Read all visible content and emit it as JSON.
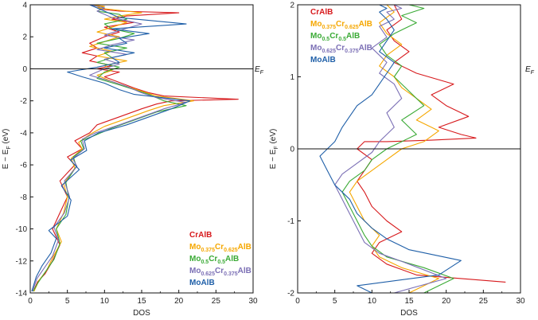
{
  "chart_data": [
    {
      "type": "line",
      "panel": "left",
      "xlabel": "DOS",
      "ylabel": "E − E_F (eV)",
      "xlim": [
        0,
        30
      ],
      "ylim": [
        -14,
        4
      ],
      "xticks": [
        "0",
        "5",
        "10",
        "15",
        "20",
        "25",
        "30"
      ],
      "yticks": [
        "4",
        "2",
        "0",
        "-2",
        "-4",
        "-6",
        "-8",
        "-10",
        "-12",
        "-14"
      ],
      "fermi_label": "E_F",
      "legend_position": "bottom-right",
      "series": [
        {
          "name": "CrAlB",
          "color": "#d7191c",
          "x": [
            0.5,
            1,
            2,
            3,
            4,
            3,
            4,
            5,
            4,
            6,
            5,
            7,
            6,
            8,
            9,
            12,
            15,
            17,
            19,
            28,
            18,
            16,
            14,
            10,
            12,
            9,
            11,
            8,
            9,
            7,
            9,
            8,
            10,
            12,
            10,
            14,
            11,
            13,
            20,
            12,
            10,
            9,
            10,
            8
          ],
          "y": [
            -13.8,
            -13.3,
            -12.8,
            -12,
            -11,
            -10,
            -9,
            -8,
            -7,
            -6,
            -5.5,
            -5,
            -4.5,
            -4,
            -3.5,
            -3,
            -2.5,
            -2.2,
            -2,
            -1.9,
            -1.7,
            -1.5,
            -1.2,
            -0.5,
            -0.2,
            0,
            0.2,
            0.5,
            0.8,
            1,
            1.3,
            1.6,
            2,
            2.3,
            2.6,
            2.9,
            3.1,
            3.3,
            3.5,
            3.6,
            3.7,
            3.8,
            3.9,
            4
          ]
        },
        {
          "name": "Mo0.375Cr0.625AlB",
          "color": "#f5a700",
          "x": [
            0.5,
            1.2,
            2.2,
            3,
            4.2,
            3.5,
            4.5,
            5,
            4.5,
            6,
            5.5,
            7,
            6.5,
            8,
            10,
            13,
            16,
            18,
            22,
            17,
            15,
            13,
            11,
            9,
            11,
            10,
            13,
            9,
            11,
            8,
            10,
            12,
            9,
            11,
            13,
            10,
            12,
            15,
            11,
            9,
            10,
            8
          ],
          "y": [
            -13.9,
            -13.2,
            -12.6,
            -11.8,
            -10.8,
            -10,
            -9,
            -8,
            -7.2,
            -6.2,
            -5.6,
            -5,
            -4.6,
            -4.1,
            -3.6,
            -3.1,
            -2.6,
            -2.3,
            -2,
            -1.7,
            -1.4,
            -1.1,
            -0.8,
            -0.4,
            -0.1,
            0.2,
            0.5,
            0.8,
            1.1,
            1.4,
            1.7,
            2,
            2.3,
            2.6,
            2.9,
            3.1,
            3.3,
            3.5,
            3.7,
            3.8,
            3.9,
            4
          ]
        },
        {
          "name": "Mo0.5Cr0.5AlB",
          "color": "#3aaa35",
          "x": [
            0.4,
            1,
            2,
            3.2,
            4,
            3.5,
            4.8,
            5.2,
            4.8,
            6.2,
            5.8,
            7.2,
            6.8,
            8.5,
            11,
            14,
            17,
            21,
            18,
            16,
            14,
            12,
            9,
            10,
            12,
            9,
            11,
            10,
            13,
            9,
            12,
            14,
            11,
            10,
            13,
            12,
            9,
            10,
            8
          ],
          "y": [
            -13.9,
            -13.4,
            -12.7,
            -11.9,
            -10.9,
            -10,
            -9.1,
            -8.1,
            -7.1,
            -6.1,
            -5.5,
            -5,
            -4.5,
            -4.2,
            -3.7,
            -3.2,
            -2.7,
            -2.3,
            -2,
            -1.6,
            -1.3,
            -1,
            -0.6,
            -0.2,
            0.1,
            0.4,
            0.7,
            1,
            1.3,
            1.6,
            1.9,
            2.2,
            2.5,
            2.8,
            3.1,
            3.4,
            3.6,
            3.8,
            4
          ]
        },
        {
          "name": "Mo0.625Cr0.375AlB",
          "color": "#7b6fb5",
          "x": [
            0.3,
            0.9,
            1.8,
            3,
            3.8,
            3.2,
            4.6,
            5.3,
            4.6,
            6.3,
            5.7,
            7.3,
            7,
            8.8,
            12,
            15,
            18,
            21,
            17,
            15,
            13,
            11,
            8,
            10,
            12,
            10,
            13,
            9,
            11,
            14,
            10,
            12,
            15,
            11,
            9,
            10,
            8
          ],
          "y": [
            -13.9,
            -13.1,
            -12.5,
            -11.7,
            -10.7,
            -9.9,
            -9,
            -8,
            -7,
            -6.1,
            -5.6,
            -5,
            -4.4,
            -4,
            -3.5,
            -3,
            -2.5,
            -2.1,
            -1.8,
            -1.5,
            -1.1,
            -0.8,
            -0.4,
            0,
            0.3,
            0.6,
            0.9,
            1.2,
            1.5,
            1.8,
            2.1,
            2.4,
            2.8,
            3.2,
            3.6,
            3.8,
            4
          ]
        },
        {
          "name": "MoAlB",
          "color": "#1f5fa8",
          "x": [
            0.2,
            0.8,
            1.6,
            2.8,
            3.5,
            2.5,
            5,
            5.5,
            4.2,
            6.6,
            5.4,
            7.6,
            7.3,
            9.2,
            13,
            16,
            19,
            21.5,
            14,
            12,
            10,
            7,
            5,
            9,
            12,
            11,
            14,
            10,
            13,
            12,
            16,
            11,
            21,
            12,
            10,
            9,
            8
          ],
          "y": [
            -13.9,
            -13,
            -12.3,
            -11.5,
            -10.6,
            -10.1,
            -9.2,
            -8.2,
            -7.3,
            -6.3,
            -5.7,
            -5.1,
            -4.5,
            -4,
            -3.5,
            -3,
            -2.5,
            -2,
            -1.6,
            -1.3,
            -0.9,
            -0.5,
            -0.2,
            0.1,
            0.4,
            0.7,
            1,
            1.3,
            1.6,
            1.9,
            2.2,
            2.5,
            2.8,
            3.2,
            3.6,
            3.8,
            4
          ]
        }
      ]
    },
    {
      "type": "line",
      "panel": "right",
      "xlabel": "DOS",
      "ylabel": "E − E_F (eV)",
      "xlim": [
        0,
        30
      ],
      "ylim": [
        -2,
        2
      ],
      "xticks": [
        "0",
        "5",
        "10",
        "15",
        "20",
        "25",
        "30"
      ],
      "yticks": [
        "2",
        "1",
        "0",
        "-1",
        "-2"
      ],
      "fermi_label": "E_F",
      "legend_position": "top-left",
      "series": [
        {
          "name": "CrAlB",
          "color": "#d7191c",
          "x": [
            28,
            16,
            12,
            10,
            11,
            14,
            12,
            10,
            9,
            8,
            9,
            10,
            8,
            9,
            12,
            18,
            24,
            22,
            19,
            23,
            20,
            18,
            21,
            16,
            13,
            15,
            13,
            12,
            14,
            13
          ],
          "y": [
            -1.85,
            -1.75,
            -1.6,
            -1.45,
            -1.3,
            -1.15,
            -1.0,
            -0.8,
            -0.6,
            -0.45,
            -0.3,
            -0.15,
            0,
            0.1,
            0.1,
            0.12,
            0.15,
            0.2,
            0.3,
            0.45,
            0.6,
            0.75,
            0.9,
            1.05,
            1.2,
            1.35,
            1.5,
            1.65,
            1.8,
            2
          ]
        },
        {
          "name": "Mo0.375Cr0.625AlB",
          "color": "#f5a700",
          "x": [
            15,
            19,
            14,
            11,
            10,
            11,
            9,
            8,
            7,
            8,
            10,
            12,
            14,
            17,
            19,
            16,
            18,
            16,
            14,
            13,
            11,
            12,
            14,
            12,
            11,
            13,
            12
          ],
          "y": [
            -2,
            -1.8,
            -1.65,
            -1.5,
            -1.35,
            -1.2,
            -1.0,
            -0.8,
            -0.6,
            -0.45,
            -0.3,
            -0.15,
            0,
            0.1,
            0.25,
            0.4,
            0.55,
            0.7,
            0.85,
            1.0,
            1.15,
            1.3,
            1.45,
            1.6,
            1.75,
            1.9,
            2
          ]
        },
        {
          "name": "Mo0.5Cr0.5AlB",
          "color": "#3aaa35",
          "x": [
            17,
            21,
            17,
            12,
            10,
            9,
            8,
            7,
            6,
            7,
            9,
            10,
            12,
            16,
            14,
            17,
            15,
            13,
            14,
            12,
            11,
            13,
            16,
            14,
            17,
            15
          ],
          "y": [
            -2,
            -1.8,
            -1.65,
            -1.5,
            -1.35,
            -1.2,
            -1.0,
            -0.8,
            -0.6,
            -0.45,
            -0.3,
            -0.15,
            0,
            0.2,
            0.4,
            0.6,
            0.8,
            1.0,
            1.15,
            1.3,
            1.45,
            1.6,
            1.75,
            1.85,
            1.95,
            2
          ]
        },
        {
          "name": "Mo0.625Cr0.375AlB",
          "color": "#7b6fb5",
          "x": [
            13,
            20,
            15,
            11,
            9,
            8,
            7,
            6,
            5,
            6,
            8,
            10,
            11,
            13,
            12,
            14,
            13,
            11,
            12,
            10,
            12,
            11,
            13,
            12,
            14,
            13
          ],
          "y": [
            -2,
            -1.8,
            -1.6,
            -1.45,
            -1.3,
            -1.1,
            -0.9,
            -0.7,
            -0.5,
            -0.35,
            -0.2,
            -0.05,
            0.1,
            0.3,
            0.5,
            0.7,
            0.9,
            1.05,
            1.2,
            1.4,
            1.55,
            1.7,
            1.8,
            1.9,
            1.95,
            2
          ]
        },
        {
          "name": "MoAlB",
          "color": "#1f5fa8",
          "x": [
            10,
            8,
            19,
            22,
            15,
            12,
            10,
            8,
            7,
            5,
            4,
            3,
            5,
            6,
            7,
            8,
            10,
            11,
            12,
            13,
            11,
            12,
            13,
            12,
            11,
            12,
            11
          ],
          "y": [
            -2,
            -1.9,
            -1.75,
            -1.55,
            -1.4,
            -1.25,
            -1.1,
            -0.9,
            -0.7,
            -0.5,
            -0.3,
            -0.1,
            0.1,
            0.3,
            0.45,
            0.6,
            0.75,
            0.9,
            1.05,
            1.2,
            1.35,
            1.5,
            1.65,
            1.8,
            1.9,
            1.95,
            2
          ]
        }
      ]
    }
  ]
}
